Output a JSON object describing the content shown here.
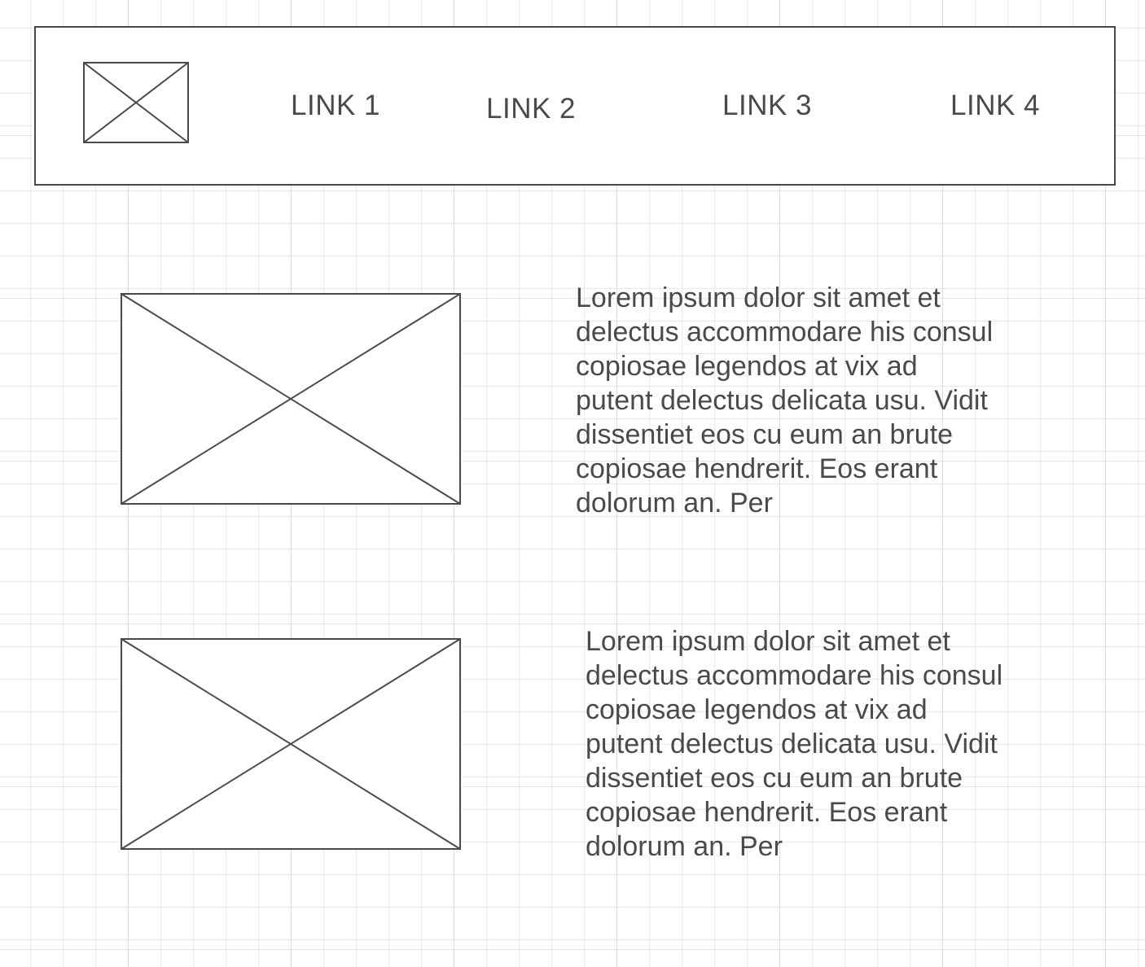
{
  "header": {
    "logo": {
      "type": "image-placeholder"
    },
    "nav_links": [
      "LINK 1",
      "LINK 2",
      "LINK 3",
      "LINK 4"
    ]
  },
  "content": {
    "sections": [
      {
        "image": {
          "type": "image-placeholder"
        },
        "text": "Lorem ipsum dolor sit amet et\ndelectus accommodare his consul\ncopiosae legendos at vix ad\nputent delectus delicata usu. Vidit\ndissentiet eos cu eum an brute\ncopiosae hendrerit. Eos erant\ndolorum an. Per"
      },
      {
        "image": {
          "type": "image-placeholder"
        },
        "text": "Lorem ipsum dolor sit amet et\ndelectus accommodare his consul\ncopiosae legendos at vix ad\nputent delectus delicata usu. Vidit\ndissentiet eos cu eum an brute\ncopiosae hendrerit. Eos erant\ndolorum an. Per"
      }
    ]
  },
  "colors": {
    "stroke": "#4a4a4a",
    "text": "#4a4a4a",
    "background": "#ffffff",
    "grid": "#e9e9e9"
  }
}
